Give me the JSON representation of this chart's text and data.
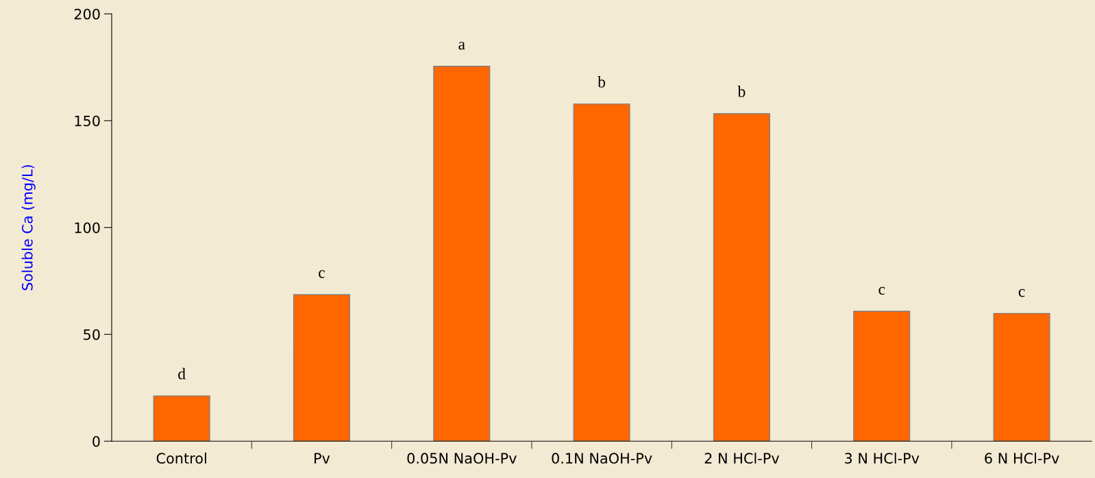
{
  "chart_data": {
    "type": "bar",
    "ylabel": "Soluble Ca (mg/L)",
    "categories": [
      "Control",
      "Pv",
      "0.05N NaOH-Pv",
      "0.1N NaOH-Pv",
      "2 N HCl-Pv",
      "3 N HCl-Pv",
      "6 N HCl-Pv"
    ],
    "values": [
      21.2,
      68.6,
      175.5,
      157.8,
      153.3,
      60.8,
      59.8
    ],
    "color": "#ff6600",
    "ylim": [
      0,
      200
    ],
    "yticks": [
      0,
      50,
      100,
      150,
      200
    ],
    "grid": false,
    "legend": false,
    "annotations": [
      {
        "text": "d",
        "x": "Control",
        "y": 21.2
      },
      {
        "text": "c",
        "x": "Pv",
        "y": 68.6
      },
      {
        "text": "a",
        "x": "0.05N NaOH-Pv",
        "y": 175.5
      },
      {
        "text": "b",
        "x": "0.1N NaOH-Pv",
        "y": 157.8
      },
      {
        "text": "b",
        "x": "2 N HCl-Pv",
        "y": 153.3
      },
      {
        "text": "c",
        "x": "3 N HCl-Pv",
        "y": 60.8
      },
      {
        "text": "c",
        "x": "6 N HCl-Pv",
        "y": 59.8
      }
    ]
  }
}
